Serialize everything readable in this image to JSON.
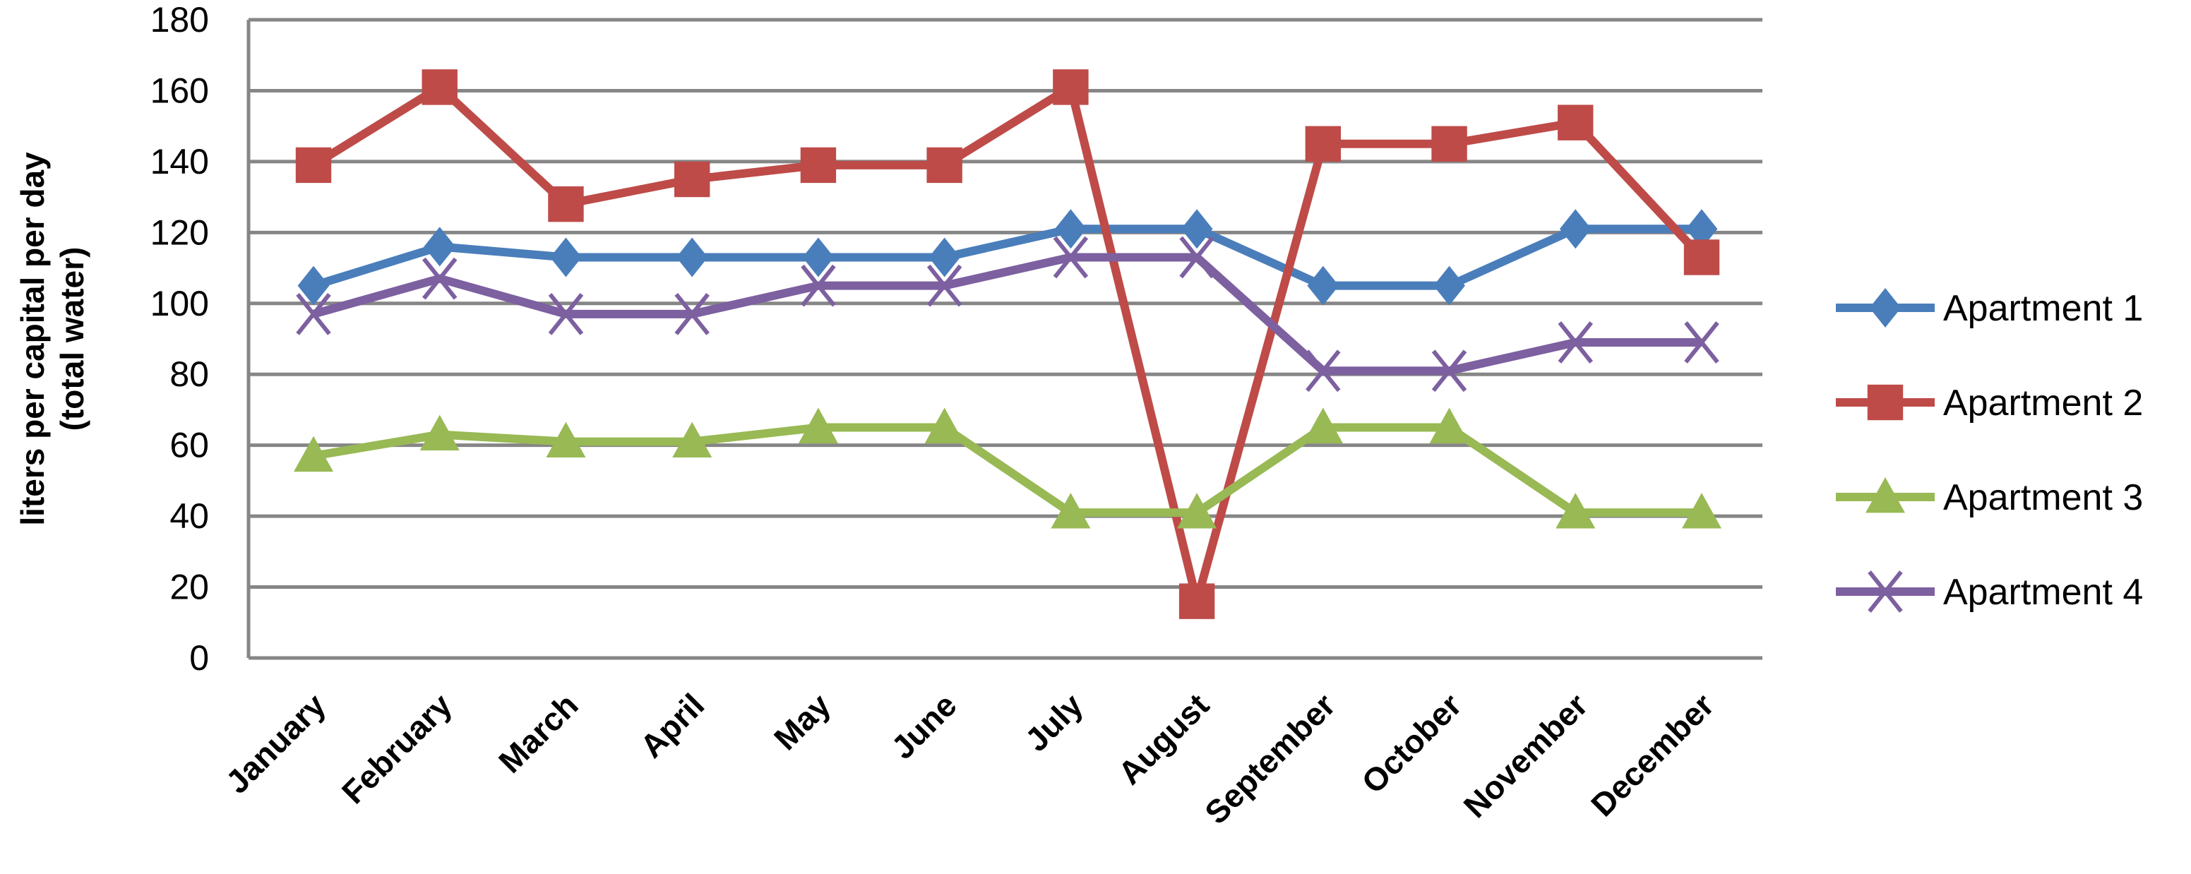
{
  "chart_data": {
    "type": "line",
    "title": "",
    "xlabel": "",
    "ylabel": [
      "liters per capital per day",
      "(total water)"
    ],
    "ylim": [
      0,
      180
    ],
    "yticks": [
      0,
      20,
      40,
      60,
      80,
      100,
      120,
      140,
      160,
      180
    ],
    "grid": true,
    "legend_placement": "right",
    "categories": [
      "January",
      "February",
      "March",
      "April",
      "May",
      "June",
      "July",
      "August",
      "September",
      "October",
      "November",
      "December"
    ],
    "series": [
      {
        "name": "Apartment 1",
        "color": "#4a7ebb",
        "marker": "diamond",
        "values": [
          105,
          116,
          113,
          113,
          113,
          113,
          121,
          121,
          105,
          105,
          121,
          121
        ]
      },
      {
        "name": "Apartment 2",
        "color": "#be4b48",
        "marker": "square",
        "values": [
          139,
          161,
          128,
          135,
          139,
          139,
          161,
          16,
          145,
          145,
          151,
          113
        ]
      },
      {
        "name": "Apartment 3",
        "color": "#98b954",
        "marker": "triangle",
        "values": [
          57,
          63,
          61,
          61,
          65,
          65,
          41,
          41,
          65,
          65,
          41,
          41
        ]
      },
      {
        "name": "Apartment 4",
        "color": "#7d60a0",
        "marker": "x",
        "values": [
          97,
          107,
          97,
          97,
          105,
          105,
          113,
          113,
          81,
          81,
          89,
          89
        ]
      }
    ]
  }
}
